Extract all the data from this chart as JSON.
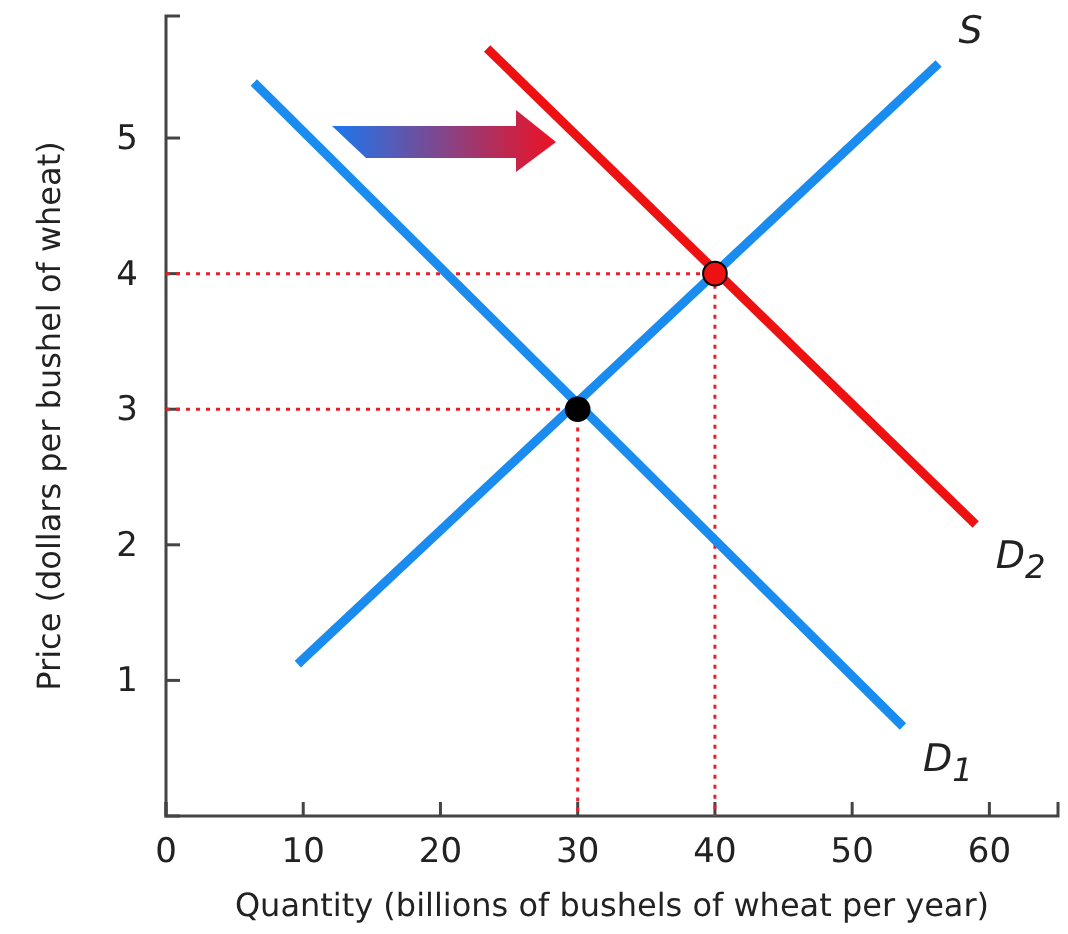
{
  "chart_data": {
    "type": "line",
    "xlabel": "Quantity (billions of bushels of wheat per year)",
    "ylabel": "Price (dollars per bushel of wheat)",
    "xlim": [
      0,
      65
    ],
    "ylim": [
      0,
      5.9
    ],
    "xticks": [
      0,
      10,
      20,
      30,
      40,
      50,
      60
    ],
    "yticks": [
      1,
      2,
      3,
      4,
      5
    ],
    "series": [
      {
        "name": "S",
        "color": "#1a8cf0",
        "x": [
          9.6,
          56.3
        ],
        "values": [
          1.12,
          5.55
        ]
      },
      {
        "name": "D$_{1}$",
        "color": "#1a8cf0",
        "x": [
          6.4,
          53.7
        ],
        "values": [
          5.41,
          0.66
        ]
      },
      {
        "name": "D$_{2}$",
        "color": "#ee1111",
        "x": [
          23.4,
          59
        ],
        "values": [
          5.66,
          2.15
        ]
      },
      {
        "color": "#e8202a",
        "line_style": "dotted",
        "x": [
          0,
          30,
          30
        ],
        "values": [
          3,
          3,
          0
        ]
      },
      {
        "color": "#e8202a",
        "line_style": "dotted",
        "x": [
          0,
          40,
          40
        ],
        "values": [
          4,
          4,
          0
        ]
      },
      {
        "type": "scatter",
        "marker": "circle",
        "color": "#000000",
        "x": [
          30
        ],
        "values": [
          3
        ]
      },
      {
        "type": "scatter",
        "marker": "circle",
        "color": "#ee1111",
        "x": [
          40
        ],
        "values": [
          4
        ]
      }
    ]
  }
}
